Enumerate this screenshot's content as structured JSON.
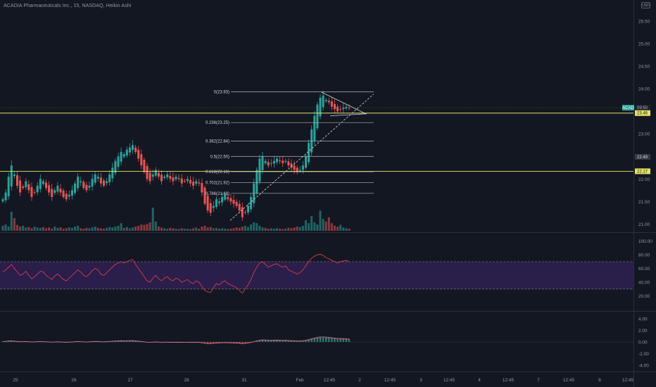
{
  "header": {
    "title": "ACADIA Pharmaceuticals Inc., 15, NASDAQ, Heikin Ashi",
    "currency": "USD"
  },
  "colors": {
    "background": "#131722",
    "up": "#26a69a",
    "down": "#ef5350",
    "fib_line": "#b2b5be",
    "level_line": "#e6e65c",
    "rsi_line": "#e8424b",
    "rsi_band": "#2a1e4a"
  },
  "price_tags": {
    "ticker": "ACAD",
    "countdown": "09:50",
    "levels": [
      "23.46",
      "22.49",
      "22.17"
    ]
  },
  "chart_data": [
    {
      "type": "candlestick",
      "style": "Heikin Ashi",
      "interval": "15",
      "y_ticks": [
        "25.50",
        "25.00",
        "24.50",
        "24.00",
        "23.50",
        "23.00",
        "22.50",
        "22.00",
        "21.50",
        "21.00"
      ],
      "ylim": [
        20.85,
        25.75
      ],
      "x_ticks": [
        "25",
        "26",
        "27",
        "28",
        "31",
        "Feb",
        "12:45",
        "2",
        "12:45",
        "3",
        "12:45",
        "4",
        "12:45",
        "7",
        "12:45",
        "8",
        "12:45"
      ],
      "current_price": 23.58,
      "horizontal_levels": [
        23.46,
        22.17
      ],
      "fibonacci": [
        {
          "label": "0(23.93)",
          "value": 23.93
        },
        {
          "label": "0.236(23.25)",
          "value": 23.25
        },
        {
          "label": "0.382(22.84)",
          "value": 22.84
        },
        {
          "label": "0.5(22.50)",
          "value": 22.5
        },
        {
          "label": "0.618(22.16)",
          "value": 22.16
        },
        {
          "label": "0.702(21.92)",
          "value": 21.92
        },
        {
          "label": "0.786(21.68)",
          "value": 21.68
        }
      ],
      "trendline": {
        "from": 21.08,
        "to": 23.93
      },
      "pennant": {
        "upper": [
          23.93,
          23.6
        ],
        "lower": [
          23.4,
          23.55
        ]
      },
      "closes": [
        21.55,
        21.7,
        22.05,
        22.3,
        22.1,
        21.85,
        21.7,
        21.8,
        21.95,
        21.75,
        21.6,
        21.7,
        21.85,
        22.0,
        21.95,
        21.8,
        21.7,
        21.6,
        21.75,
        21.85,
        21.7,
        21.6,
        21.55,
        21.65,
        21.75,
        21.9,
        22.05,
        21.95,
        21.8,
        21.75,
        21.85,
        22.0,
        22.1,
        22.05,
        21.9,
        21.85,
        21.95,
        22.1,
        22.25,
        22.4,
        22.5,
        22.6,
        22.55,
        22.65,
        22.7,
        22.75,
        22.6,
        22.45,
        22.3,
        22.15,
        22.0,
        21.95,
        22.1,
        22.2,
        22.05,
        21.95,
        22.05,
        22.1,
        22.0,
        21.95,
        22.05,
        22.0,
        21.9,
        21.95,
        22.0,
        21.9,
        21.85,
        21.95,
        21.9,
        21.7,
        21.45,
        21.3,
        21.25,
        21.4,
        21.55,
        21.5,
        21.6,
        21.65,
        21.55,
        21.5,
        21.45,
        21.4,
        21.3,
        21.15,
        21.25,
        21.4,
        21.6,
        21.9,
        22.2,
        22.45,
        22.5,
        22.4,
        22.3,
        22.35,
        22.4,
        22.45,
        22.4,
        22.35,
        22.4,
        22.3,
        22.25,
        22.2,
        22.15,
        22.2,
        22.3,
        22.5,
        22.8,
        23.1,
        23.4,
        23.65,
        23.8,
        23.85,
        23.75,
        23.7,
        23.6,
        23.55,
        23.5,
        23.55,
        23.58,
        23.6,
        23.58
      ],
      "volume": [
        0.12,
        0.15,
        0.1,
        0.45,
        0.3,
        0.14,
        0.1,
        0.12,
        0.08,
        0.09,
        0.06,
        0.1,
        0.08,
        0.07,
        0.09,
        0.06,
        0.08,
        0.05,
        0.1,
        0.07,
        0.08,
        0.05,
        0.06,
        0.08,
        0.07,
        0.1,
        0.12,
        0.06,
        0.05,
        0.07,
        0.06,
        0.08,
        0.1,
        0.07,
        0.06,
        0.05,
        0.07,
        0.09,
        0.08,
        0.1,
        0.12,
        0.18,
        0.07,
        0.09,
        0.06,
        0.08,
        0.1,
        0.12,
        0.15,
        0.14,
        0.16,
        0.2,
        0.55,
        0.22,
        0.1,
        0.08,
        0.06,
        0.05,
        0.07,
        0.06,
        0.05,
        0.04,
        0.06,
        0.05,
        0.05,
        0.04,
        0.06,
        0.08,
        0.05,
        0.1,
        0.12,
        0.08,
        0.09,
        0.06,
        0.07,
        0.05,
        0.06,
        0.05,
        0.04,
        0.05,
        0.06,
        0.08,
        0.07,
        0.1,
        0.12,
        0.09,
        0.15,
        0.2,
        0.18,
        0.12,
        0.08,
        0.07,
        0.05,
        0.06,
        0.05,
        0.06,
        0.05,
        0.04,
        0.05,
        0.07,
        0.06,
        0.08,
        0.1,
        0.09,
        0.12,
        0.25,
        0.18,
        0.35,
        0.2,
        0.15,
        0.48,
        0.28,
        0.22,
        0.32,
        0.18,
        0.12,
        0.1,
        0.14,
        0.08,
        0.06,
        0.05
      ]
    },
    {
      "type": "line",
      "name": "RSI",
      "y_ticks": [
        "100.00",
        "80.00",
        "60.00",
        "40.00",
        "20.00"
      ],
      "ylim": [
        0,
        110
      ],
      "bands": [
        70,
        30
      ],
      "values": [
        55,
        58,
        62,
        66,
        60,
        55,
        50,
        52,
        56,
        50,
        45,
        48,
        52,
        56,
        55,
        50,
        47,
        44,
        49,
        52,
        48,
        44,
        42,
        46,
        50,
        54,
        58,
        55,
        50,
        48,
        52,
        57,
        60,
        58,
        52,
        50,
        54,
        58,
        62,
        66,
        68,
        70,
        68,
        70,
        72,
        73,
        66,
        60,
        54,
        48,
        42,
        40,
        46,
        50,
        45,
        42,
        46,
        48,
        44,
        42,
        46,
        44,
        40,
        42,
        44,
        40,
        38,
        42,
        40,
        34,
        28,
        26,
        25,
        32,
        38,
        36,
        40,
        42,
        38,
        36,
        34,
        32,
        28,
        24,
        30,
        36,
        44,
        54,
        62,
        68,
        70,
        66,
        62,
        64,
        66,
        67,
        64,
        62,
        64,
        58,
        56,
        54,
        52,
        54,
        58,
        64,
        70,
        75,
        78,
        80,
        81,
        79,
        76,
        74,
        72,
        70,
        68,
        70,
        71,
        72,
        70
      ]
    },
    {
      "type": "line",
      "name": "MACD",
      "y_ticks": [
        "4.00",
        "2.00",
        "0.00",
        "-2.00",
        "-4.00"
      ],
      "ylim": [
        -5,
        5
      ],
      "values": [
        0.1,
        0.12,
        0.18,
        0.2,
        0.15,
        0.1,
        0.05,
        0.06,
        0.08,
        0.04,
        0.0,
        0.02,
        0.05,
        0.07,
        0.06,
        0.03,
        0.0,
        -0.03,
        0.0,
        0.02,
        0.0,
        -0.03,
        -0.05,
        -0.03,
        0.0,
        0.04,
        0.08,
        0.06,
        0.02,
        0.0,
        0.03,
        0.07,
        0.1,
        0.08,
        0.04,
        0.02,
        0.05,
        0.09,
        0.13,
        0.17,
        0.2,
        0.22,
        0.21,
        0.23,
        0.24,
        0.25,
        0.2,
        0.14,
        0.08,
        0.02,
        -0.04,
        -0.06,
        -0.02,
        0.01,
        -0.03,
        -0.06,
        -0.03,
        -0.02,
        -0.05,
        -0.07,
        -0.04,
        -0.05,
        -0.08,
        -0.06,
        -0.05,
        -0.08,
        -0.1,
        -0.07,
        -0.08,
        -0.14,
        -0.22,
        -0.28,
        -0.3,
        -0.24,
        -0.18,
        -0.19,
        -0.15,
        -0.12,
        -0.14,
        -0.16,
        -0.18,
        -0.2,
        -0.24,
        -0.3,
        -0.26,
        -0.18,
        -0.08,
        0.06,
        0.2,
        0.32,
        0.38,
        0.36,
        0.32,
        0.32,
        0.33,
        0.34,
        0.32,
        0.3,
        0.31,
        0.27,
        0.24,
        0.21,
        0.18,
        0.19,
        0.23,
        0.3,
        0.42,
        0.56,
        0.7,
        0.82,
        0.9,
        0.9,
        0.86,
        0.82,
        0.76,
        0.7,
        0.64,
        0.62,
        0.6,
        0.58,
        0.55
      ]
    }
  ]
}
